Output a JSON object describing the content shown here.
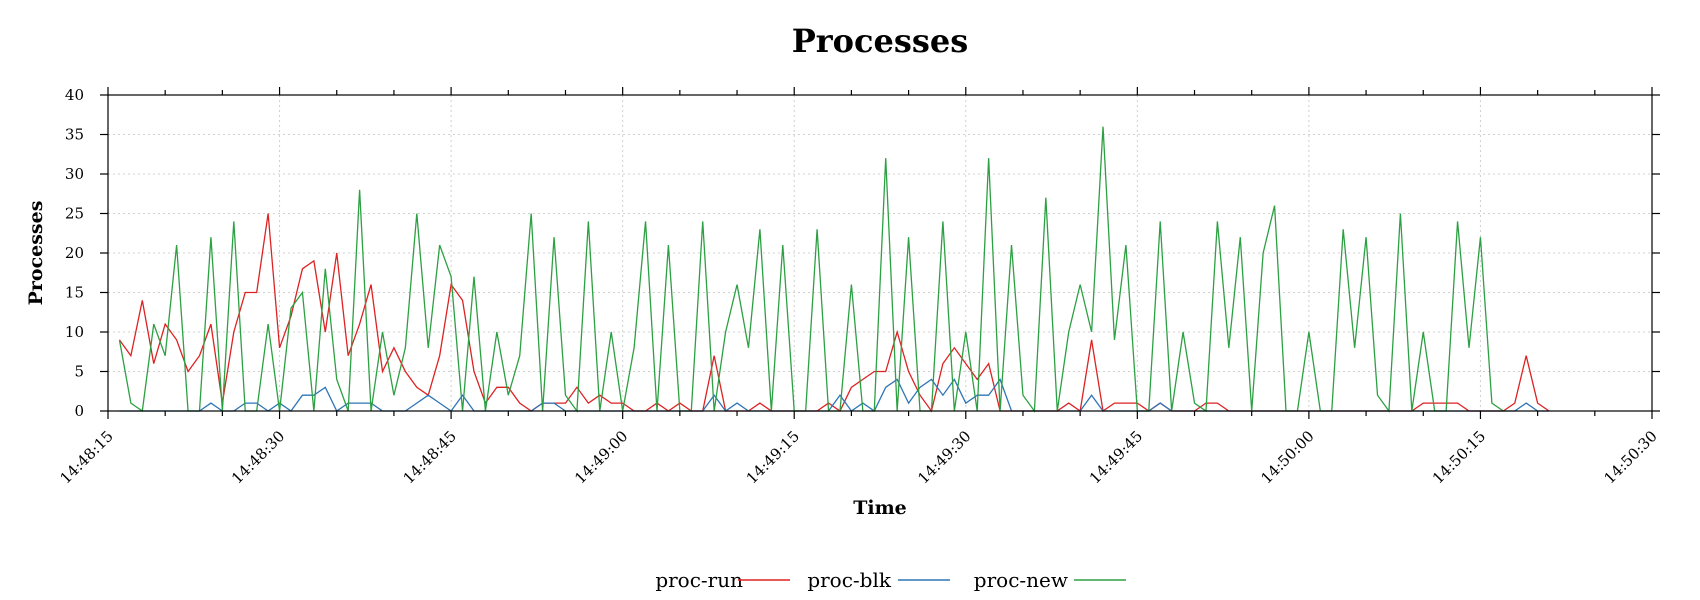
{
  "chart_data": {
    "type": "line",
    "title": "Processes",
    "xlabel": "Time",
    "ylabel": "Processes",
    "xlim": [
      "14:48:15",
      "14:50:30"
    ],
    "ylim": [
      0,
      40
    ],
    "x_ticks": [
      "14:48:15",
      "14:48:30",
      "14:48:45",
      "14:49:00",
      "14:49:15",
      "14:49:30",
      "14:49:45",
      "14:50:00",
      "14:50:15",
      "14:50:30"
    ],
    "y_ticks": [
      0,
      5,
      10,
      15,
      20,
      25,
      30,
      35,
      40
    ],
    "grid": true,
    "legend_position": "bottom-center",
    "x_start": "14:48:16",
    "x_step_seconds": 1,
    "series": [
      {
        "name": "proc-run",
        "color": "#dd2222",
        "values": [
          9,
          7,
          14,
          6,
          11,
          9,
          5,
          7,
          11,
          1,
          10,
          15,
          15,
          25,
          8,
          12,
          18,
          19,
          10,
          20,
          7,
          11,
          16,
          5,
          8,
          5,
          3,
          2,
          7,
          16,
          14,
          5,
          1,
          3,
          3,
          1,
          0,
          1,
          1,
          1,
          3,
          1,
          2,
          1,
          1,
          0,
          0,
          1,
          0,
          1,
          0,
          0,
          7,
          0,
          0,
          0,
          1,
          0,
          0,
          0,
          0,
          0,
          1,
          0,
          3,
          4,
          5,
          5,
          10,
          5,
          2,
          0,
          6,
          8,
          6,
          4,
          6,
          0,
          0,
          0,
          0,
          0,
          0,
          1,
          0,
          9,
          0,
          1,
          1,
          1,
          0,
          1,
          0,
          0,
          0,
          1,
          1,
          0,
          0,
          0,
          0,
          0,
          0,
          0,
          0,
          0,
          0,
          0,
          0,
          0,
          0,
          0,
          0,
          0,
          1,
          1,
          1,
          1,
          0,
          0,
          0,
          0,
          1,
          7,
          1,
          0
        ]
      },
      {
        "name": "proc-blk",
        "color": "#2e75b6",
        "values": [
          0,
          0,
          0,
          0,
          0,
          0,
          0,
          0,
          1,
          0,
          0,
          1,
          1,
          0,
          1,
          0,
          2,
          2,
          3,
          0,
          1,
          1,
          1,
          0,
          0,
          0,
          1,
          2,
          1,
          0,
          2,
          0,
          0,
          0,
          0,
          0,
          0,
          1,
          1,
          0,
          0,
          0,
          0,
          0,
          0,
          0,
          0,
          0,
          0,
          0,
          0,
          0,
          2,
          0,
          1,
          0,
          0,
          0,
          0,
          0,
          0,
          0,
          0,
          2,
          0,
          1,
          0,
          3,
          4,
          1,
          3,
          4,
          2,
          4,
          1,
          2,
          2,
          4,
          0,
          0,
          0,
          0,
          0,
          0,
          0,
          2,
          0,
          0,
          0,
          0,
          0,
          1,
          0,
          0,
          0,
          0,
          0,
          0,
          0,
          0,
          0,
          0,
          0,
          0,
          0,
          0,
          0,
          0,
          0,
          0,
          0,
          0,
          0,
          0,
          0,
          0,
          0,
          0,
          0,
          0,
          0,
          0,
          0,
          1,
          0,
          0
        ]
      },
      {
        "name": "proc-new",
        "color": "#2ca042",
        "values": [
          9,
          1,
          0,
          11,
          7,
          21,
          0,
          0,
          22,
          0,
          24,
          0,
          0,
          11,
          0,
          13,
          15,
          0,
          18,
          4,
          0,
          28,
          0,
          10,
          2,
          8,
          25,
          8,
          21,
          17,
          0,
          17,
          0,
          10,
          2,
          7,
          25,
          0,
          22,
          2,
          0,
          24,
          0,
          10,
          0,
          8,
          24,
          0,
          21,
          0,
          0,
          24,
          0,
          10,
          16,
          8,
          23,
          0,
          21,
          0,
          0,
          23,
          0,
          0,
          16,
          0,
          0,
          32,
          0,
          22,
          0,
          0,
          24,
          0,
          10,
          0,
          32,
          0,
          21,
          2,
          0,
          27,
          0,
          10,
          16,
          10,
          36,
          9,
          21,
          0,
          0,
          24,
          0,
          10,
          1,
          0,
          24,
          8,
          22,
          0,
          20,
          26,
          0,
          0,
          10,
          0,
          0,
          23,
          8,
          22,
          2,
          0,
          25,
          0,
          10,
          0,
          0,
          24,
          8,
          22,
          1,
          0
        ]
      }
    ]
  }
}
